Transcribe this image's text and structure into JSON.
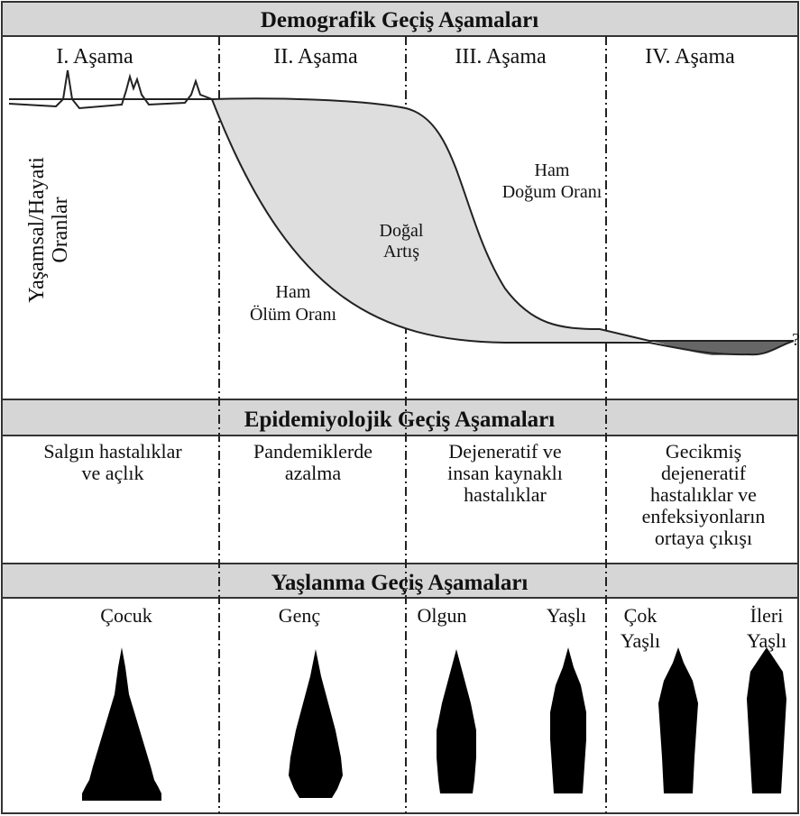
{
  "demographic": {
    "title": "Demografik Geçiş Aşamaları",
    "stages": [
      "I. Aşama",
      "II. Aşama",
      "III. Aşama",
      "IV. Aşama"
    ],
    "y_axis_label": [
      "Yaşamsal/Hayati",
      "Oranlar"
    ],
    "labels": {
      "birth_rate": [
        "Ham",
        "Doğum Oranı"
      ],
      "death_rate": [
        "Ham",
        "Ölüm Oranı"
      ],
      "natural_increase": [
        "Doğal",
        "Artış"
      ],
      "question": "?"
    }
  },
  "epidemiological": {
    "title": "Epidemiyolojik Geçiş Aşamaları",
    "stages": [
      [
        "Salgın hastalıklar",
        "ve açlık"
      ],
      [
        "Pandemiklerde",
        "azalma"
      ],
      [
        "Dejeneratif ve",
        "insan kaynaklı",
        "hastalıklar"
      ],
      [
        "Gecikmiş",
        "dejeneratif",
        "hastalıklar ve",
        "enfeksiyonların",
        "ortaya çıkışı"
      ]
    ]
  },
  "aging": {
    "title": "Yaşlanma Geçiş Aşamaları",
    "stages": [
      [
        "Çocuk"
      ],
      [
        "Genç"
      ],
      [
        "Olgun"
      ],
      [
        "Yaşlı"
      ],
      [
        "Çok",
        "Yaşlı"
      ],
      [
        "İleri",
        "Yaşlı"
      ]
    ]
  }
}
